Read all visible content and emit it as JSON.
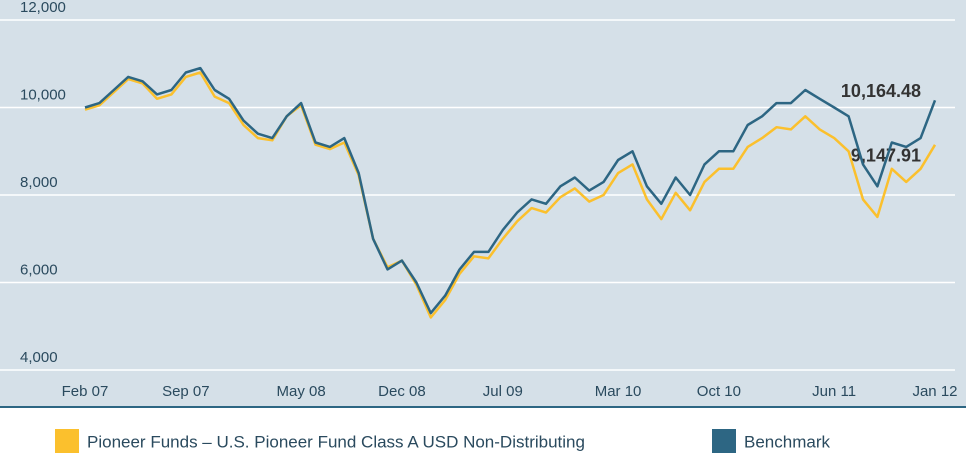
{
  "chart_data": {
    "type": "line",
    "categories": [
      "Feb 07",
      null,
      null,
      null,
      null,
      null,
      null,
      "Sep 07",
      null,
      null,
      null,
      null,
      null,
      null,
      null,
      "May 08",
      null,
      null,
      null,
      null,
      null,
      null,
      "Dec 08",
      null,
      null,
      null,
      null,
      null,
      null,
      "Jul 09",
      null,
      null,
      null,
      null,
      null,
      null,
      null,
      "Mar 10",
      null,
      null,
      null,
      null,
      null,
      null,
      "Oct 10",
      null,
      null,
      null,
      null,
      null,
      null,
      null,
      "Jun 11",
      null,
      null,
      null,
      null,
      null,
      null,
      "Jan 12"
    ],
    "series": [
      {
        "name": "Pioneer Funds – U.S. Pioneer Fund Class A USD Non-Distributing",
        "color": "#fbc02d",
        "values": [
          9950,
          10050,
          10350,
          10650,
          10550,
          10200,
          10300,
          10700,
          10800,
          10250,
          10100,
          9600,
          9300,
          9250,
          9800,
          10050,
          9150,
          9050,
          9200,
          8450,
          7000,
          6350,
          6500,
          5950,
          5200,
          5600,
          6200,
          6600,
          6550,
          7000,
          7400,
          7700,
          7600,
          7950,
          8150,
          7850,
          8000,
          8500,
          8700,
          7900,
          7450,
          8050,
          7650,
          8300,
          8600,
          8600,
          9100,
          9300,
          9550,
          9500,
          9800,
          9500,
          9300,
          9000,
          7900,
          7500,
          8600,
          8300,
          8600,
          9147.91
        ],
        "value_labels": [
          null,
          null,
          null,
          null,
          null,
          null,
          null,
          null,
          null,
          null,
          null,
          null,
          null,
          null,
          null,
          null,
          null,
          null,
          null,
          null,
          null,
          null,
          null,
          null,
          null,
          null,
          null,
          null,
          null,
          null,
          null,
          null,
          null,
          null,
          null,
          null,
          null,
          null,
          null,
          null,
          null,
          null,
          null,
          null,
          null,
          null,
          null,
          null,
          null,
          null,
          null,
          null,
          null,
          null,
          null,
          null,
          null,
          null,
          null,
          "9,147.91"
        ]
      },
      {
        "name": "Benchmark",
        "color": "#2d6683",
        "values": [
          10000,
          10100,
          10400,
          10700,
          10600,
          10300,
          10400,
          10800,
          10900,
          10400,
          10200,
          9700,
          9400,
          9300,
          9800,
          10100,
          9200,
          9100,
          9300,
          8500,
          7000,
          6300,
          6500,
          6000,
          5300,
          5700,
          6300,
          6700,
          6700,
          7200,
          7600,
          7900,
          7800,
          8200,
          8400,
          8100,
          8300,
          8800,
          9000,
          8200,
          7800,
          8400,
          8000,
          8700,
          9000,
          9000,
          9600,
          9800,
          10100,
          10100,
          10400,
          10200,
          10000,
          9800,
          8700,
          8200,
          9200,
          9100,
          9300,
          10164.48
        ],
        "value_labels": [
          null,
          null,
          null,
          null,
          null,
          null,
          null,
          null,
          null,
          null,
          null,
          null,
          null,
          null,
          null,
          null,
          null,
          null,
          null,
          null,
          null,
          null,
          null,
          null,
          null,
          null,
          null,
          null,
          null,
          null,
          null,
          null,
          null,
          null,
          null,
          null,
          null,
          null,
          null,
          null,
          null,
          null,
          null,
          null,
          null,
          null,
          null,
          null,
          null,
          null,
          null,
          null,
          null,
          null,
          null,
          null,
          null,
          null,
          null,
          "10,164.48"
        ]
      }
    ],
    "ylim": [
      4000,
      12000
    ],
    "yticks": [
      {
        "value": 4000,
        "label": "4,000"
      },
      {
        "value": 6000,
        "label": "6,000"
      },
      {
        "value": 8000,
        "label": "8,000"
      },
      {
        "value": 10000,
        "label": "10,000"
      },
      {
        "value": 12000,
        "label": "12,000"
      }
    ],
    "grid": true,
    "legend": "bottom"
  }
}
